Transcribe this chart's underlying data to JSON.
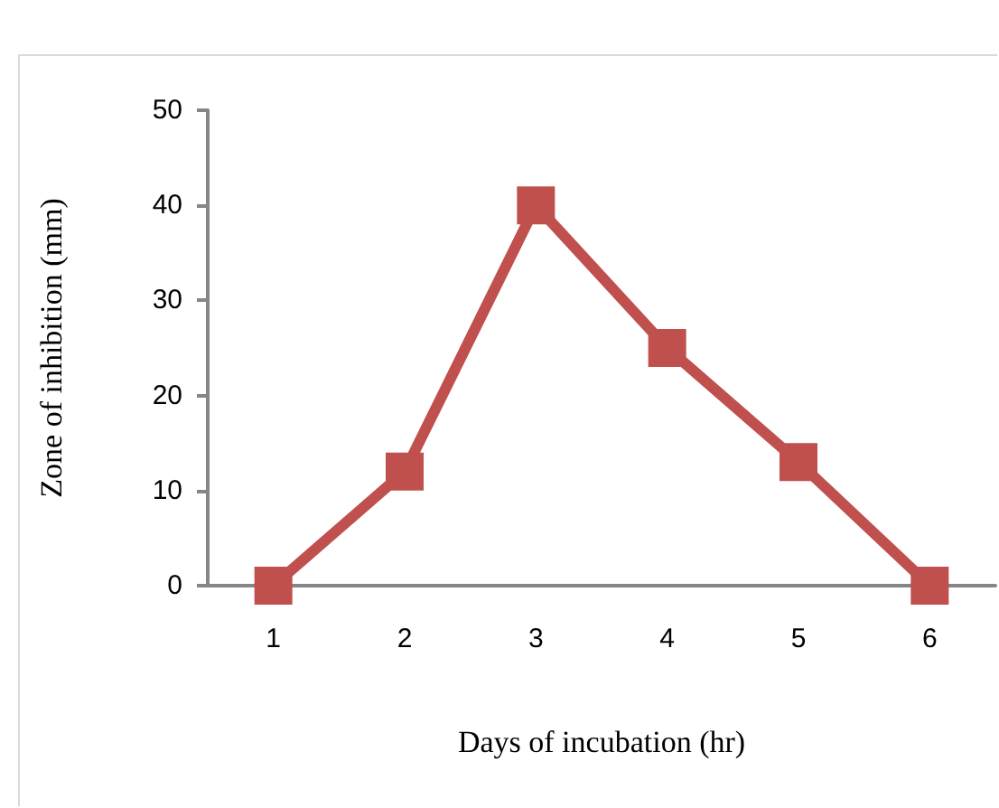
{
  "chart_data": {
    "type": "line",
    "xlabel": "Days of incubation (hr)",
    "ylabel": "Zone of inhibition (mm)",
    "categories": [
      "1",
      "2",
      "3",
      "4",
      "5",
      "6"
    ],
    "series": [
      {
        "color": "#c0504d",
        "values": [
          0,
          12,
          40,
          25,
          13,
          0
        ]
      }
    ],
    "ylim": [
      0,
      50
    ],
    "yticks": [
      0,
      10,
      20,
      30,
      40,
      50
    ],
    "grid": false,
    "marker": "square",
    "line_style": "solid"
  }
}
